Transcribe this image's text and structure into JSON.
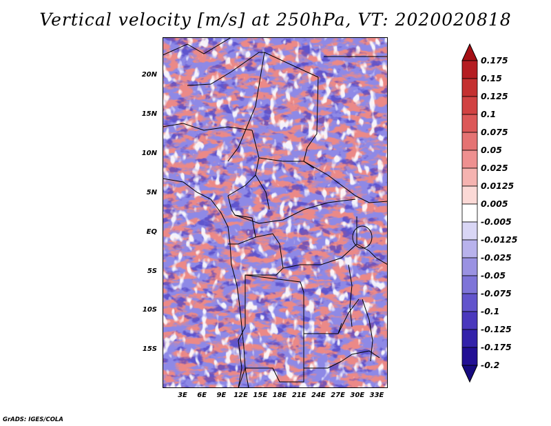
{
  "title": "Vertical velocity [m/s] at 250hPa, VT: 2020020818",
  "map": {
    "lat_labels": [
      "20N",
      "15N",
      "10N",
      "5N",
      "EQ",
      "5S",
      "10S",
      "15S"
    ],
    "lon_labels": [
      "3E",
      "6E",
      "9E",
      "12E",
      "15E",
      "18E",
      "21E",
      "24E",
      "27E",
      "30E",
      "33E"
    ]
  },
  "colorbar": {
    "labels": [
      "0.175",
      "0.15",
      "0.125",
      "0.1",
      "0.075",
      "0.05",
      "0.025",
      "0.0125",
      "0.005",
      "-0.005",
      "-0.0125",
      "-0.025",
      "-0.05",
      "-0.075",
      "-0.1",
      "-0.125",
      "-0.175",
      "-0.2"
    ],
    "colors": [
      "#a50f15",
      "#b51d22",
      "#c43030",
      "#d14242",
      "#dc5858",
      "#e57373",
      "#ee9090",
      "#f5b3b0",
      "#fbd9d6",
      "#ffffff",
      "#d9d6f5",
      "#b8b2ec",
      "#9a92e2",
      "#7e74d8",
      "#6254cc",
      "#4a38bd",
      "#3322aa",
      "#220f94",
      "#170a80"
    ]
  },
  "credit": "GrADS: IGES/COLA"
}
